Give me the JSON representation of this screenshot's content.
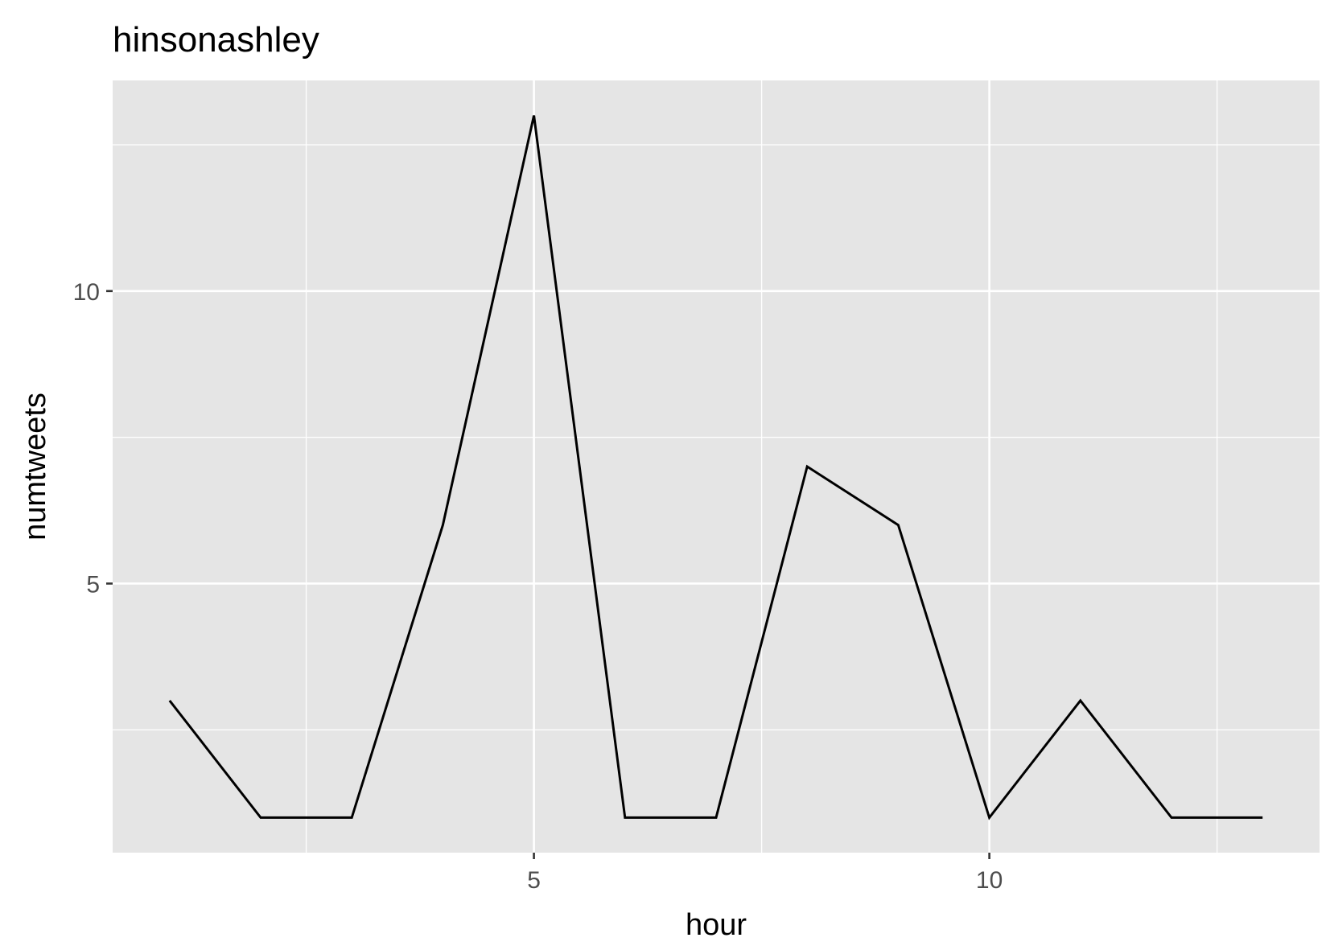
{
  "chart_data": {
    "type": "line",
    "title": "hinsonashley",
    "xlabel": "hour",
    "ylabel": "numtweets",
    "x": [
      1,
      2,
      3,
      4,
      5,
      6,
      7,
      8,
      9,
      10,
      11,
      12,
      13
    ],
    "series": [
      {
        "values": [
          3,
          1,
          1,
          6,
          13,
          1,
          1,
          7,
          6,
          1,
          3,
          1,
          1
        ]
      }
    ],
    "xlim": [
      0.375,
      13.625
    ],
    "ylim": [
      0.4,
      13.6
    ],
    "x_ticks": [
      5,
      10
    ],
    "y_ticks": [
      5,
      10
    ],
    "x_tick_labels": [
      "5",
      "10"
    ],
    "y_tick_labels": [
      "5",
      "10"
    ],
    "grid": true,
    "panel_background": "#e5e5e5",
    "grid_color": "#ffffff",
    "line_color": "#000000"
  }
}
